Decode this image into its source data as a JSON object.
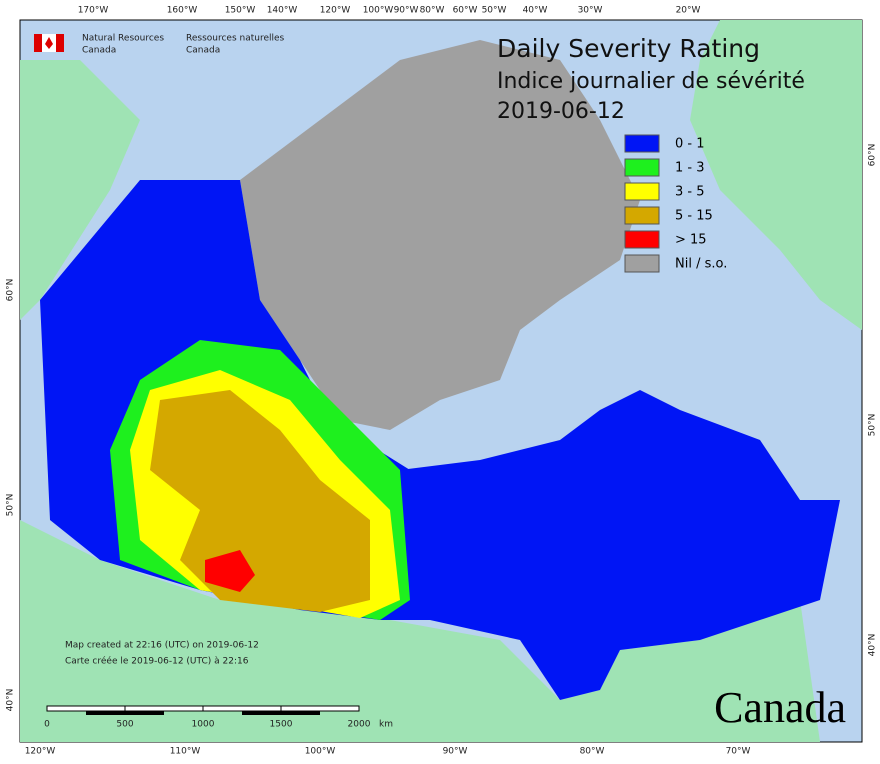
{
  "header": {
    "org_en": "Natural Resources",
    "org_en2": "Canada",
    "org_fr": "Ressources naturelles",
    "org_fr2": "Canada"
  },
  "title": {
    "line1": "Daily Severity Rating",
    "line2": "Indice journalier de sévérité",
    "date": "2019-06-12"
  },
  "legend": [
    {
      "label": "0 - 1",
      "color": "#0015f5"
    },
    {
      "label": "1 - 3",
      "color": "#1ef01e"
    },
    {
      "label": "3 - 5",
      "color": "#ffff00"
    },
    {
      "label": "5 - 15",
      "color": "#d4a800"
    },
    {
      "label": "> 15",
      "color": "#ff0000"
    },
    {
      "label": "Nil / s.o.",
      "color": "#a0a0a0"
    }
  ],
  "graticule": {
    "top": [
      "170°W",
      "160°W",
      "150°W",
      "140°W",
      "120°W",
      "100°W",
      "90°W",
      "80°W",
      "60°W",
      "50°W",
      "40°W",
      "30°W",
      "20°W"
    ],
    "bottom": [
      "120°W",
      "110°W",
      "100°W",
      "90°W",
      "80°W",
      "70°W"
    ],
    "left": [
      "60°N",
      "50°N",
      "40°N"
    ],
    "right": [
      "60°N",
      "50°N",
      "40°N"
    ]
  },
  "footer": {
    "created_en": "Map created at 22:16 (UTC) on 2019-06-12",
    "created_fr": "Carte créée le 2019-06-12 (UTC) à 22:16"
  },
  "scale": {
    "ticks": [
      "0",
      "500",
      "1000",
      "1500",
      "2000"
    ],
    "unit": "km"
  },
  "wordmark": "Canada"
}
